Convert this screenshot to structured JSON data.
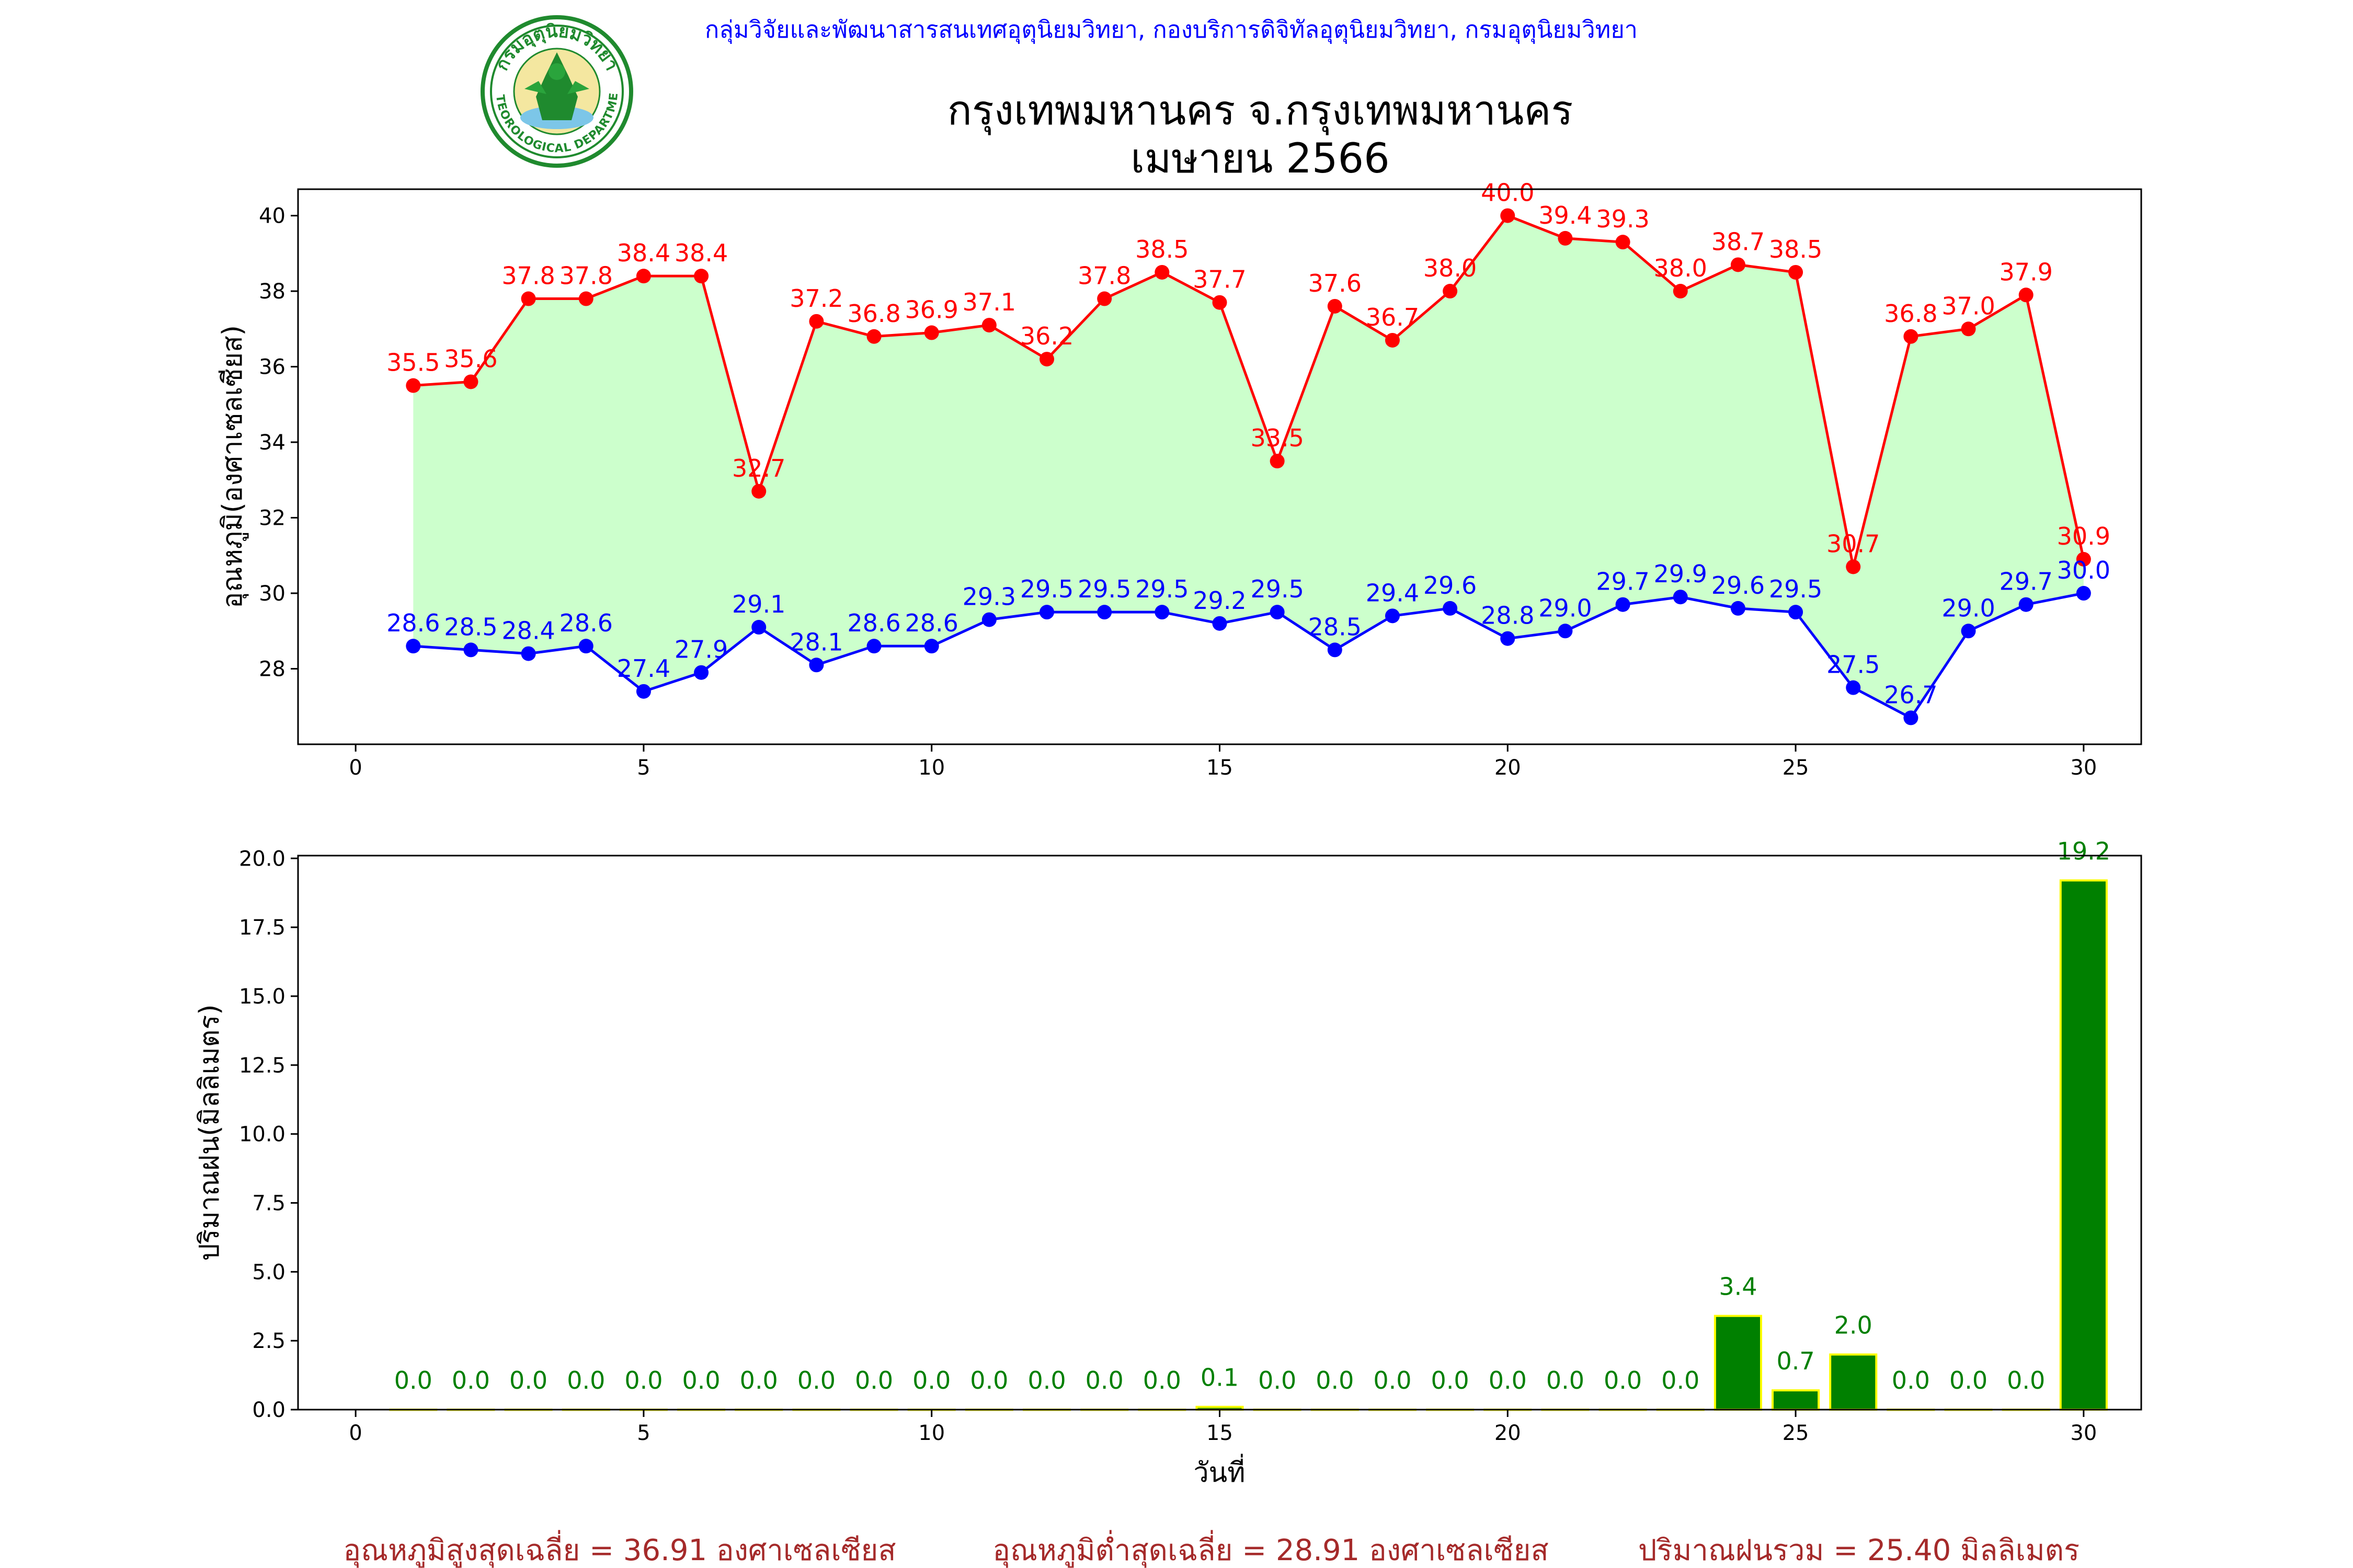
{
  "header": {
    "org_line": "กลุ่มวิจัยและพัฒนาสารสนเทศอุตุนิยมวิทยา, กองบริการดิจิทัลอุตุนิยมวิทยา, กรมอุตุนิยมวิทยา",
    "title_line1": "กรุงเทพมหานคร จ.กรุงเทพมหานคร",
    "title_line2": "เมษายน 2566",
    "logo_text_top": "กรมอุตุนิยมวิทยา",
    "logo_text_bottom": "METEOROLOGICAL DEPARTMENT"
  },
  "colors": {
    "max_line": "#ff0000",
    "min_line": "#0000ff",
    "fill": "#ccffcc",
    "rain_bar": "#008000",
    "rain_edge": "#ffff00",
    "rain_label": "#008000",
    "summary": "#a52a2a",
    "header_text": "#0000ff",
    "logo_green": "#1f8a2e"
  },
  "chart_data": [
    {
      "type": "line",
      "ylabel": "อุณหภูมิ(องศาเซลเซียส)",
      "xlabel": "",
      "xlim": [
        -1,
        31
      ],
      "ylim": [
        26.0,
        40.7
      ],
      "xticks": [
        0,
        5,
        10,
        15,
        20,
        25,
        30
      ],
      "yticks": [
        28,
        30,
        32,
        34,
        36,
        38,
        40
      ],
      "x": [
        1,
        2,
        3,
        4,
        5,
        6,
        7,
        8,
        9,
        10,
        11,
        12,
        13,
        14,
        15,
        16,
        17,
        18,
        19,
        20,
        21,
        22,
        23,
        24,
        25,
        26,
        27,
        28,
        29,
        30
      ],
      "series": [
        {
          "key": "max",
          "values": [
            35.5,
            35.6,
            37.8,
            37.8,
            38.4,
            38.4,
            32.7,
            37.2,
            36.8,
            36.9,
            37.1,
            36.2,
            37.8,
            38.5,
            37.7,
            33.5,
            37.6,
            36.7,
            38.0,
            40.0,
            39.4,
            39.3,
            38.0,
            38.7,
            38.5,
            30.7,
            36.8,
            37.0,
            37.9,
            30.9
          ]
        },
        {
          "key": "min",
          "values": [
            28.6,
            28.5,
            28.4,
            28.6,
            27.4,
            27.9,
            29.1,
            28.1,
            28.6,
            28.6,
            29.3,
            29.5,
            29.5,
            29.5,
            29.2,
            29.5,
            28.5,
            29.4,
            29.6,
            28.8,
            29.0,
            29.7,
            29.9,
            29.6,
            29.5,
            27.5,
            26.7,
            29.0,
            29.7,
            30.0
          ]
        }
      ],
      "grid": false
    },
    {
      "type": "bar",
      "ylabel": "ปริมาณฝน(มิลลิเมตร)",
      "xlabel": "วันที่",
      "xlim": [
        -1,
        31
      ],
      "ylim": [
        0,
        20.1
      ],
      "xticks": [
        0,
        5,
        10,
        15,
        20,
        25,
        30
      ],
      "yticks": [
        0.0,
        2.5,
        5.0,
        7.5,
        10.0,
        12.5,
        15.0,
        17.5,
        20.0
      ],
      "x": [
        1,
        2,
        3,
        4,
        5,
        6,
        7,
        8,
        9,
        10,
        11,
        12,
        13,
        14,
        15,
        16,
        17,
        18,
        19,
        20,
        21,
        22,
        23,
        24,
        25,
        26,
        27,
        28,
        29,
        30
      ],
      "values": [
        0.0,
        0.0,
        0.0,
        0.0,
        0.0,
        0.0,
        0.0,
        0.0,
        0.0,
        0.0,
        0.0,
        0.0,
        0.0,
        0.0,
        0.1,
        0.0,
        0.0,
        0.0,
        0.0,
        0.0,
        0.0,
        0.0,
        0.0,
        3.4,
        0.7,
        2.0,
        0.0,
        0.0,
        0.0,
        19.2
      ],
      "grid": false
    }
  ],
  "summary": {
    "avg_max": "อุณหภูมิสูงสุดเฉลี่ย = 36.91 องศาเซลเซียส",
    "avg_min": "อุณหภูมิต่ำสุดเฉลี่ย = 28.91 องศาเซลเซียส",
    "total_rain": "ปริมาณฝนรวม = 25.40 มิลลิเมตร"
  }
}
